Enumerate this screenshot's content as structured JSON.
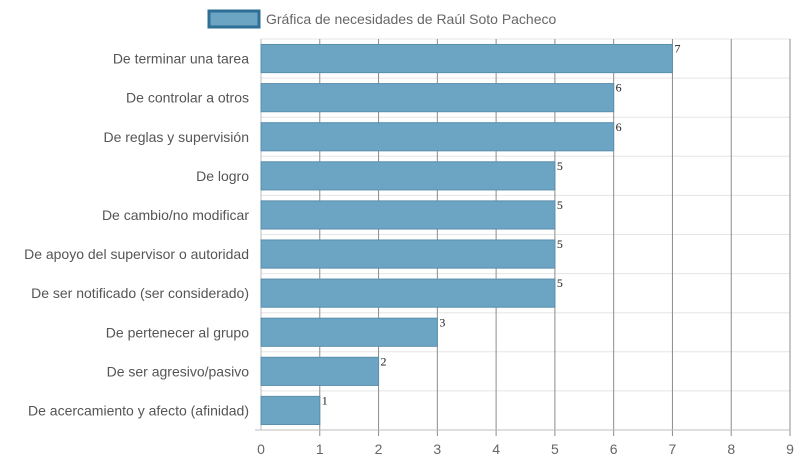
{
  "chart_data": {
    "type": "bar",
    "orientation": "horizontal",
    "categories": [
      "De terminar una tarea",
      "De controlar a otros",
      "De reglas y supervisión",
      "De logro",
      "De cambio/no modificar",
      "De apoyo del supervisor o autoridad",
      "De ser notificado (ser considerado)",
      "De pertenecer al grupo",
      "De ser agresivo/pasivo",
      "De acercamiento y afecto (afinidad)"
    ],
    "series": [
      {
        "name": "Gráfica de necesidades de Raúl Soto Pacheco",
        "values": [
          7,
          6,
          6,
          5,
          5,
          5,
          5,
          3,
          2,
          1
        ]
      }
    ],
    "xlim": [
      0,
      9
    ],
    "xticks": [
      "0",
      "1",
      "2",
      "3",
      "4",
      "5",
      "6",
      "7",
      "8",
      "9"
    ],
    "grid": true,
    "legend_position": "top-center",
    "data_labels": true,
    "bar_color": "#6ca5c4",
    "bar_border_color": "#5a8fad",
    "legend_swatch_border": "#2e6f95"
  }
}
